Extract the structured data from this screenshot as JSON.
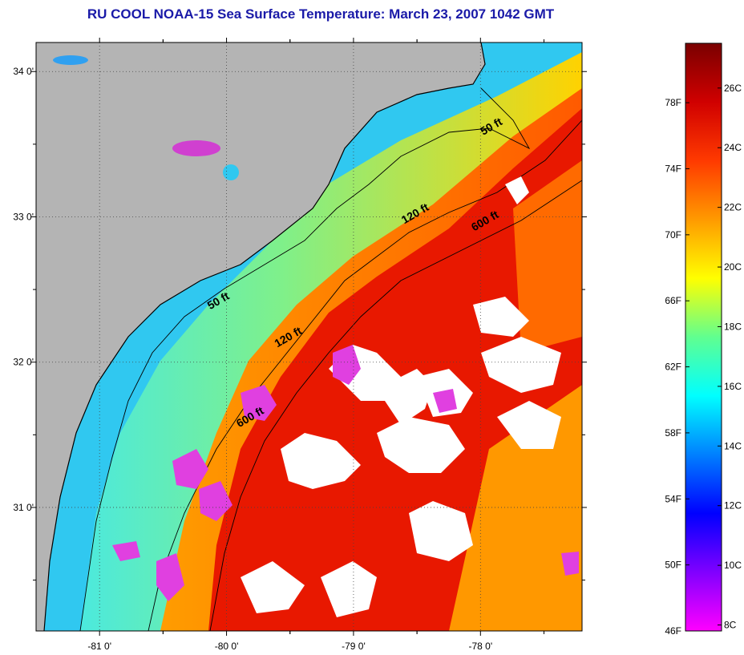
{
  "title": "RU COOL  NOAA-15  Sea Surface Temperature:  March 23, 2007 1042 GMT",
  "map": {
    "lon_range": [
      -81.5,
      -77.2
    ],
    "lat_range": [
      30.15,
      34.2
    ],
    "lat_ticks": [
      {
        "value": 34,
        "label": "34 0'"
      },
      {
        "value": 33,
        "label": "33 0'"
      },
      {
        "value": 32,
        "label": "32 0'"
      },
      {
        "value": 31,
        "label": "31 0'"
      }
    ],
    "lon_ticks": [
      {
        "value": -81,
        "label": "-81 0'"
      },
      {
        "value": -80,
        "label": "-80 0'"
      },
      {
        "value": -79,
        "label": "-79 0'"
      },
      {
        "value": -78,
        "label": "-78 0'"
      }
    ],
    "contour_labels": [
      {
        "text": "50 ft",
        "lon": -77.9,
        "lat": 33.6
      },
      {
        "text": "120 ft",
        "lon": -78.5,
        "lat": 33.0
      },
      {
        "text": "600 ft",
        "lon": -77.95,
        "lat": 32.95
      },
      {
        "text": "50 ft",
        "lon": -80.05,
        "lat": 32.4
      },
      {
        "text": "120 ft",
        "lon": -79.5,
        "lat": 32.15
      },
      {
        "text": "600 ft",
        "lon": -79.8,
        "lat": 31.6
      }
    ],
    "colors": {
      "land": "#b4b4b4",
      "cloud": "#ffffff",
      "contour": "#000000"
    }
  },
  "colorbar": {
    "fahrenheit_labels": [
      "78F",
      "74F",
      "70F",
      "66F",
      "62F",
      "58F",
      "54F",
      "50F",
      "46F"
    ],
    "celsius_labels": [
      "26C",
      "24C",
      "22C",
      "20C",
      "18C",
      "16C",
      "14C",
      "12C",
      "10C",
      "8C"
    ],
    "color_stops": [
      "#7a0000",
      "#d00000",
      "#ff3a00",
      "#ff9a00",
      "#ffff00",
      "#60ff90",
      "#00ffff",
      "#0080ff",
      "#0000ff",
      "#8000ff",
      "#ff00ff"
    ]
  }
}
